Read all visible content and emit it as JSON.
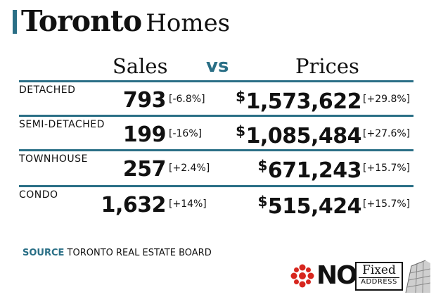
{
  "title": {
    "main": "Toronto",
    "sub": "Homes"
  },
  "chart_data": {
    "type": "table",
    "title": "Toronto Homes",
    "headers": {
      "sales": "Sales",
      "vs": "vs",
      "prices": "Prices"
    },
    "rows": [
      {
        "category": "DETACHED",
        "sales": "793",
        "sales_change": "[-6.8%]",
        "price_symbol": "$",
        "price": "1,573,622",
        "price_change": "[+29.8%]"
      },
      {
        "category": "SEMI-DETACHED",
        "sales": "199",
        "sales_change": "[-16%]",
        "price_symbol": "$",
        "price": "1,085,484",
        "price_change": "[+27.6%]"
      },
      {
        "category": "TOWNHOUSE",
        "sales": "257",
        "sales_change": "[+2.4%]",
        "price_symbol": "$",
        "price": "671,243",
        "price_change": "[+15.7%]"
      },
      {
        "category": "CONDO",
        "sales": "1,632",
        "sales_change": "[+14%]",
        "price_symbol": "$",
        "price": "515,424",
        "price_change": "[+15.7%]"
      }
    ],
    "source_label": "SOURCE",
    "source_text": "TORONTO REAL ESTATE BOARD"
  },
  "logo": {
    "no": "NO",
    "fixed": "Fixed",
    "address": "ADDRESS"
  },
  "colors": {
    "accent": "#2a6f86",
    "text": "#111111",
    "cbc_red": "#d7261e"
  }
}
